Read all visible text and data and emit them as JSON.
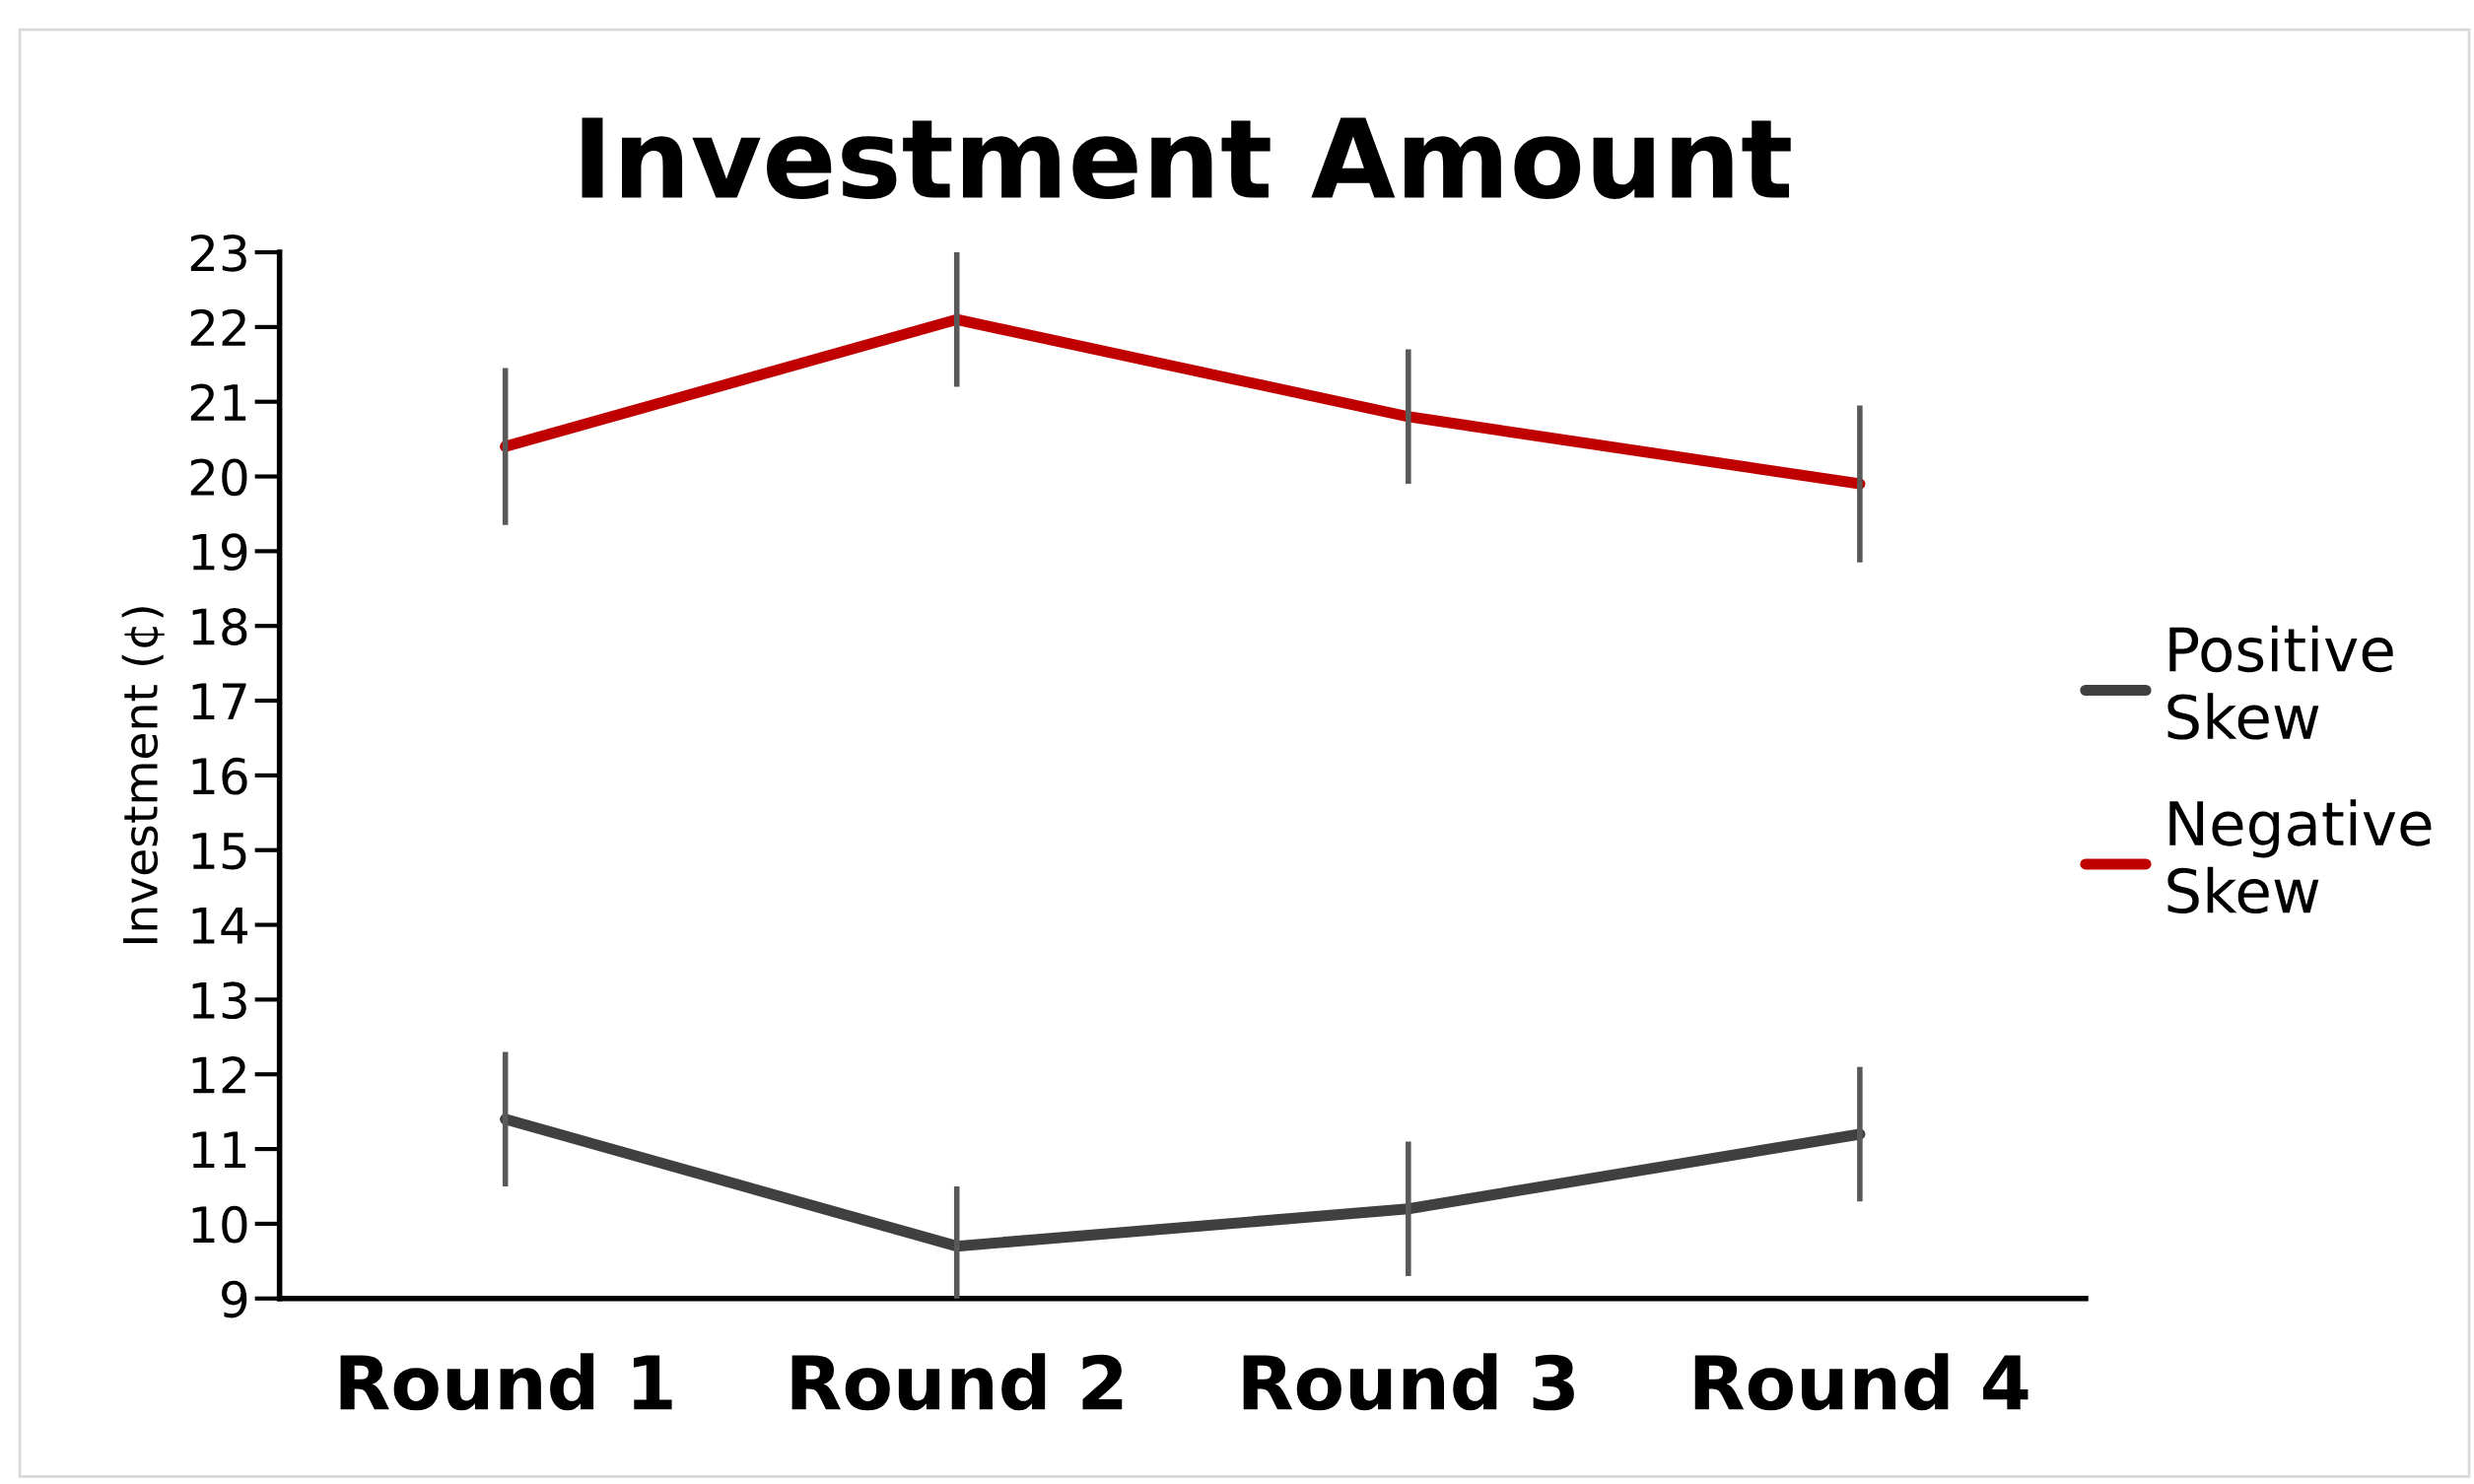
{
  "chart_data": {
    "type": "line",
    "title": "Investment Amount",
    "ylabel": "Investment (¢)",
    "categories": [
      "Round 1",
      "Round 2",
      "Round 3",
      "Round 4"
    ],
    "series": [
      {
        "name": "Positive Skew",
        "color": "#404040",
        "values": [
          11.4,
          9.7,
          10.2,
          11.2
        ],
        "errors": [
          0.9,
          0.8,
          0.9,
          0.9
        ]
      },
      {
        "name": "Negative Skew",
        "color": "#c00000",
        "values": [
          20.4,
          22.1,
          20.8,
          19.9
        ],
        "errors": [
          1.05,
          0.9,
          0.9,
          1.05
        ]
      }
    ],
    "ylim": [
      9,
      23
    ],
    "yticks": [
      9,
      10,
      11,
      12,
      13,
      14,
      15,
      16,
      17,
      18,
      19,
      20,
      21,
      22,
      23
    ],
    "grid": false,
    "legend": "right",
    "line_style": "solid"
  }
}
